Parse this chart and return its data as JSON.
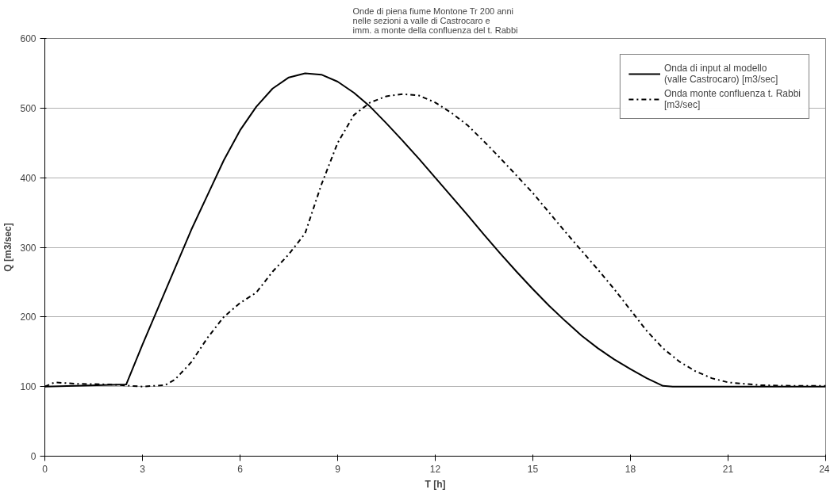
{
  "chart_data": {
    "type": "line",
    "title": "Onde di piena fiume Montone Tr 200 anni\nnelle sezioni a valle di Castrocaro e\nimm. a monte della confluenza del t. Rabbi",
    "xlabel": "T [h]",
    "ylabel": "Q [m3/sec]",
    "xlim": [
      0,
      24
    ],
    "xticks": [
      0,
      3,
      6,
      9,
      12,
      15,
      18,
      21,
      24
    ],
    "ylim": [
      0,
      600
    ],
    "yticks": [
      0,
      100,
      200,
      300,
      400,
      500,
      600
    ],
    "grid": "y",
    "legend": "top right",
    "marker": "none",
    "series": [
      {
        "name": "Onda di input al modello (valle Castrocaro) [m3/sec]",
        "color": "#000000",
        "line_style": "solid",
        "x": [
          0,
          2.5,
          3,
          3.5,
          4,
          4.5,
          5,
          5.5,
          6,
          6.5,
          7,
          7.5,
          8,
          8.5,
          9,
          9.5,
          10,
          10.5,
          11,
          11.5,
          12,
          12.5,
          13,
          13.5,
          14,
          14.5,
          15,
          15.5,
          16,
          16.5,
          17,
          17.5,
          18,
          18.5,
          19,
          19.3,
          24
        ],
        "values": [
          100,
          103,
          160,
          215,
          270,
          325,
          375,
          425,
          468,
          502,
          528,
          544,
          550,
          548,
          538,
          522,
          502,
          478,
          453,
          427,
          400,
          373,
          346,
          318,
          291,
          265,
          240,
          216,
          194,
          173,
          155,
          139,
          125,
          112,
          101,
          100,
          100
        ]
      },
      {
        "name": "Onda monte confluenza t. Rabbi [m3/sec]",
        "color": "#000000",
        "line_style": "dashdot",
        "x": [
          0,
          0.3,
          1,
          2,
          3,
          3.7,
          4,
          4.5,
          5,
          5.5,
          6,
          6.5,
          7,
          7.5,
          8,
          8.5,
          9,
          9.5,
          10,
          10.5,
          11,
          11.5,
          12,
          12.5,
          13,
          13.5,
          14,
          14.5,
          15,
          15.5,
          16,
          16.5,
          17,
          17.5,
          18,
          18.5,
          19,
          19.5,
          20,
          20.5,
          21,
          22,
          23,
          24
        ],
        "values": [
          100,
          106,
          104,
          103,
          100,
          102,
          110,
          135,
          170,
          200,
          220,
          235,
          265,
          290,
          320,
          390,
          450,
          490,
          508,
          517,
          520,
          518,
          508,
          493,
          475,
          452,
          428,
          403,
          378,
          350,
          322,
          295,
          268,
          240,
          210,
          180,
          155,
          136,
          122,
          112,
          106,
          102,
          101,
          101
        ]
      }
    ]
  }
}
